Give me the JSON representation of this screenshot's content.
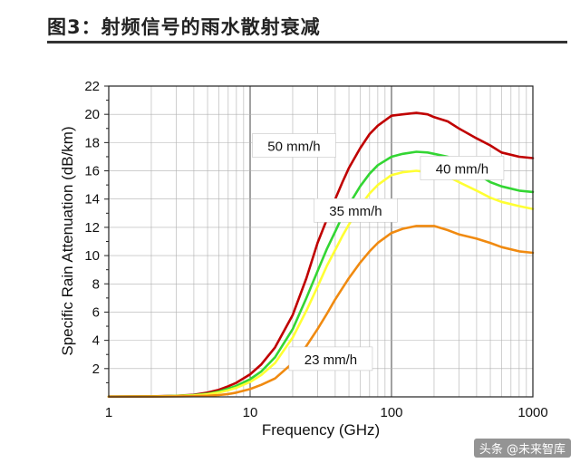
{
  "figure_title": "图3：射频信号的雨水散射衰减",
  "watermark": "头条 @未来智库",
  "colors": {
    "series_50": "#c00000",
    "series_40": "#33d633",
    "series_35": "#ffff33",
    "series_23": "#f08a10",
    "grid_major": "#444444",
    "grid_minor": "#b0b0b0",
    "label_box_border": "#bbbbbb"
  },
  "chart_data": {
    "type": "line",
    "title": "",
    "xlabel": "Frequency (GHz)",
    "ylabel": "Specific Rain Attenuation (dB/km)",
    "xscale": "log",
    "xlim": [
      1,
      1000
    ],
    "ylim": [
      0,
      22
    ],
    "xticks": [
      1,
      10,
      100,
      1000
    ],
    "xtick_labels": [
      "1",
      "10",
      "100",
      "1000"
    ],
    "yticks": [
      2,
      4,
      6,
      8,
      10,
      12,
      14,
      16,
      18,
      20,
      22
    ],
    "ytick_labels": [
      "2",
      "4",
      "6",
      "8",
      "10",
      "12",
      "14",
      "16",
      "18",
      "20",
      "22"
    ],
    "grid": true,
    "legend": "none",
    "series": [
      {
        "name": "50 mm/h",
        "x": [
          1,
          2,
          3,
          4,
          5,
          6,
          7,
          8,
          10,
          12,
          15,
          20,
          25,
          30,
          35,
          40,
          45,
          50,
          60,
          70,
          80,
          100,
          120,
          150,
          180,
          200,
          250,
          300,
          400,
          500,
          600,
          800,
          1000
        ],
        "y": [
          0.02,
          0.04,
          0.08,
          0.15,
          0.3,
          0.5,
          0.75,
          1.0,
          1.6,
          2.3,
          3.5,
          5.8,
          8.4,
          10.9,
          12.6,
          14.0,
          15.2,
          16.2,
          17.6,
          18.6,
          19.2,
          19.9,
          20.0,
          20.1,
          20.0,
          19.8,
          19.5,
          19.0,
          18.3,
          17.8,
          17.3,
          17.0,
          16.9
        ]
      },
      {
        "name": "40 mm/h",
        "x": [
          1,
          2,
          3,
          4,
          5,
          6,
          7,
          8,
          10,
          12,
          15,
          20,
          25,
          30,
          35,
          40,
          45,
          50,
          60,
          70,
          80,
          100,
          120,
          150,
          180,
          200,
          250,
          300,
          400,
          500,
          600,
          800,
          1000
        ],
        "y": [
          0.02,
          0.035,
          0.07,
          0.12,
          0.22,
          0.38,
          0.58,
          0.78,
          1.25,
          1.8,
          2.8,
          4.8,
          7.0,
          8.9,
          10.5,
          11.7,
          12.8,
          13.6,
          14.9,
          15.8,
          16.4,
          17.0,
          17.2,
          17.35,
          17.3,
          17.2,
          17.0,
          16.6,
          15.8,
          15.2,
          14.9,
          14.6,
          14.5
        ]
      },
      {
        "name": "35 mm/h",
        "x": [
          1,
          2,
          3,
          4,
          5,
          6,
          7,
          8,
          10,
          12,
          15,
          20,
          25,
          30,
          35,
          40,
          45,
          50,
          60,
          70,
          80,
          100,
          120,
          150,
          180,
          200,
          250,
          300,
          400,
          500,
          600,
          800,
          1000
        ],
        "y": [
          0.02,
          0.03,
          0.06,
          0.1,
          0.18,
          0.3,
          0.47,
          0.65,
          1.05,
          1.55,
          2.4,
          4.2,
          6.1,
          7.8,
          9.3,
          10.4,
          11.4,
          12.2,
          13.5,
          14.4,
          15.0,
          15.7,
          15.9,
          16.0,
          15.9,
          15.8,
          15.6,
          15.2,
          14.6,
          14.1,
          13.8,
          13.5,
          13.3
        ]
      },
      {
        "name": "23 mm/h",
        "x": [
          1,
          2,
          3,
          4,
          5,
          6,
          7,
          8,
          10,
          12,
          15,
          20,
          25,
          30,
          35,
          40,
          45,
          50,
          60,
          70,
          80,
          100,
          120,
          150,
          180,
          200,
          250,
          300,
          400,
          500,
          600,
          800,
          1000
        ],
        "y": [
          0.01,
          0.02,
          0.03,
          0.05,
          0.08,
          0.13,
          0.2,
          0.3,
          0.55,
          0.85,
          1.3,
          2.4,
          3.6,
          4.8,
          5.9,
          6.9,
          7.7,
          8.4,
          9.5,
          10.3,
          10.9,
          11.6,
          11.9,
          12.1,
          12.1,
          12.1,
          11.8,
          11.5,
          11.2,
          10.9,
          10.6,
          10.3,
          10.2
        ]
      }
    ],
    "annotations": [
      {
        "text": "50 mm/h",
        "series": 0,
        "x": 11,
        "y": 17.8
      },
      {
        "text": "40 mm/h",
        "series": 1,
        "x": 170,
        "y": 16.2
      },
      {
        "text": "35 mm/h",
        "series": 2,
        "x": 30,
        "y": 13.2
      },
      {
        "text": "23 mm/h",
        "series": 3,
        "x": 20,
        "y": 2.7
      }
    ]
  }
}
